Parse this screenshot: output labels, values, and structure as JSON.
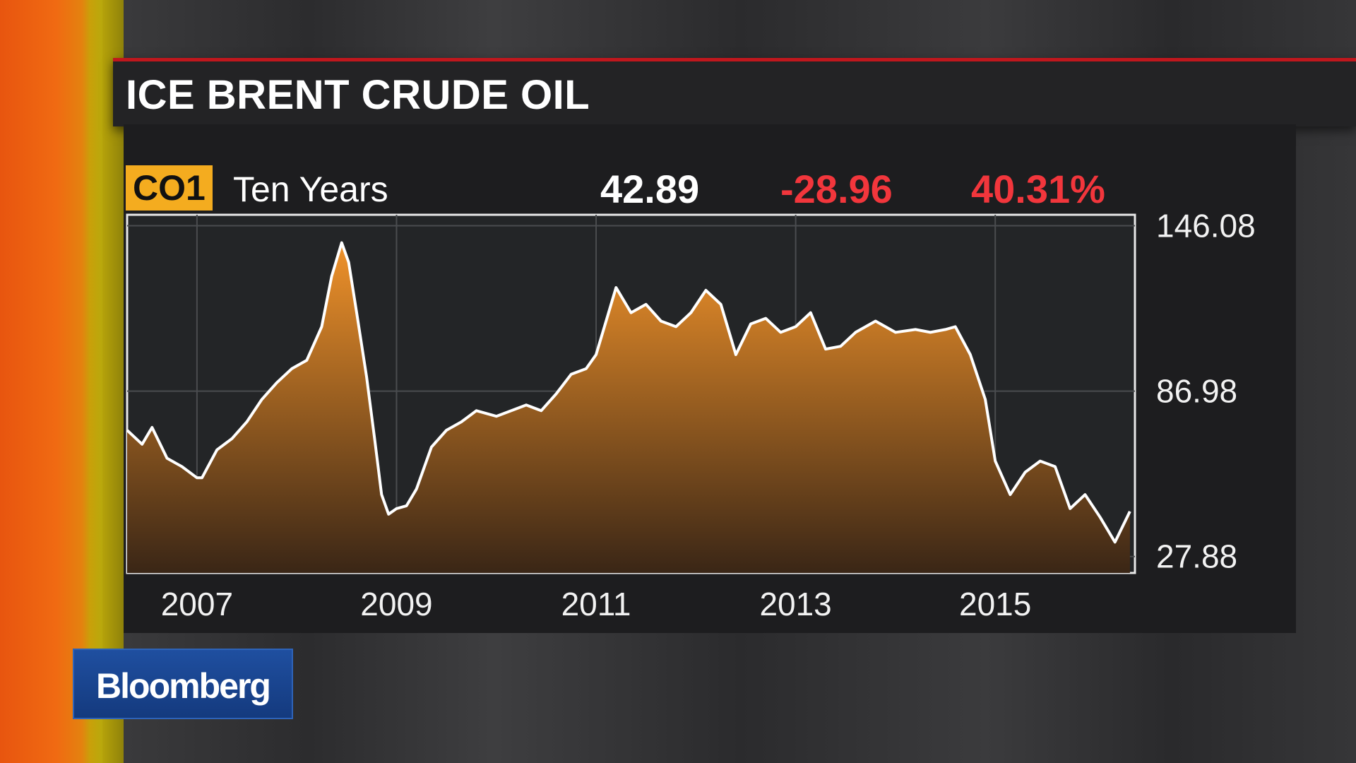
{
  "title": "ICE BRENT CRUDE OIL",
  "header": {
    "ticker": "CO1",
    "period": "Ten Years",
    "last": "42.89",
    "change": "-28.96",
    "pct_change": "40.31%"
  },
  "logo": {
    "text": "Bloomberg"
  },
  "colors": {
    "accent_red": "#f2363c",
    "ticker_badge": "#f4ac1f",
    "area_fill_top": "#f0922a",
    "area_fill_bottom": "#3a2616",
    "line": "#ffffff"
  },
  "chart_data": {
    "type": "area",
    "title": "ICE BRENT CRUDE OIL",
    "xlabel": "",
    "ylabel": "",
    "x_ticks": [
      "2007",
      "2009",
      "2011",
      "2013",
      "2015"
    ],
    "y_ticks": [
      "146.08",
      "86.98",
      "27.88"
    ],
    "ylim": [
      22,
      150
    ],
    "xlim": [
      2006.3,
      2016.4
    ],
    "grid": true,
    "series": [
      {
        "x": [
          2006.3,
          2006.45,
          2006.55,
          2006.7,
          2006.85,
          2007.0,
          2007.05,
          2007.2,
          2007.35,
          2007.5,
          2007.65,
          2007.8,
          2007.95,
          2008.1,
          2008.25,
          2008.35,
          2008.45,
          2008.52,
          2008.6,
          2008.7,
          2008.78,
          2008.85,
          2008.92,
          2009.0,
          2009.1,
          2009.2,
          2009.35,
          2009.5,
          2009.65,
          2009.8,
          2010.0,
          2010.15,
          2010.3,
          2010.45,
          2010.6,
          2010.75,
          2010.9,
          2011.0,
          2011.1,
          2011.2,
          2011.35,
          2011.5,
          2011.65,
          2011.8,
          2011.95,
          2012.1,
          2012.25,
          2012.4,
          2012.55,
          2012.7,
          2012.85,
          2013.0,
          2013.15,
          2013.3,
          2013.45,
          2013.6,
          2013.8,
          2014.0,
          2014.2,
          2014.35,
          2014.5,
          2014.6,
          2014.75,
          2014.9,
          2015.0,
          2015.15,
          2015.3,
          2015.45,
          2015.6,
          2015.75,
          2015.9,
          2016.05,
          2016.2,
          2016.35
        ],
        "y": [
          73,
          68,
          74,
          63,
          60,
          56,
          56,
          66,
          70,
          76,
          84,
          90,
          95,
          98,
          110,
          128,
          140,
          133,
          115,
          92,
          70,
          50,
          43,
          45,
          46,
          52,
          67,
          73,
          76,
          80,
          78,
          80,
          82,
          80,
          86,
          93,
          95,
          100,
          112,
          124,
          115,
          118,
          112,
          110,
          115,
          123,
          118,
          100,
          111,
          113,
          108,
          110,
          115,
          102,
          103,
          108,
          112,
          108,
          109,
          108,
          109,
          110,
          100,
          84,
          62,
          50,
          58,
          62,
          60,
          45,
          50,
          42,
          33,
          44
        ]
      }
    ]
  }
}
